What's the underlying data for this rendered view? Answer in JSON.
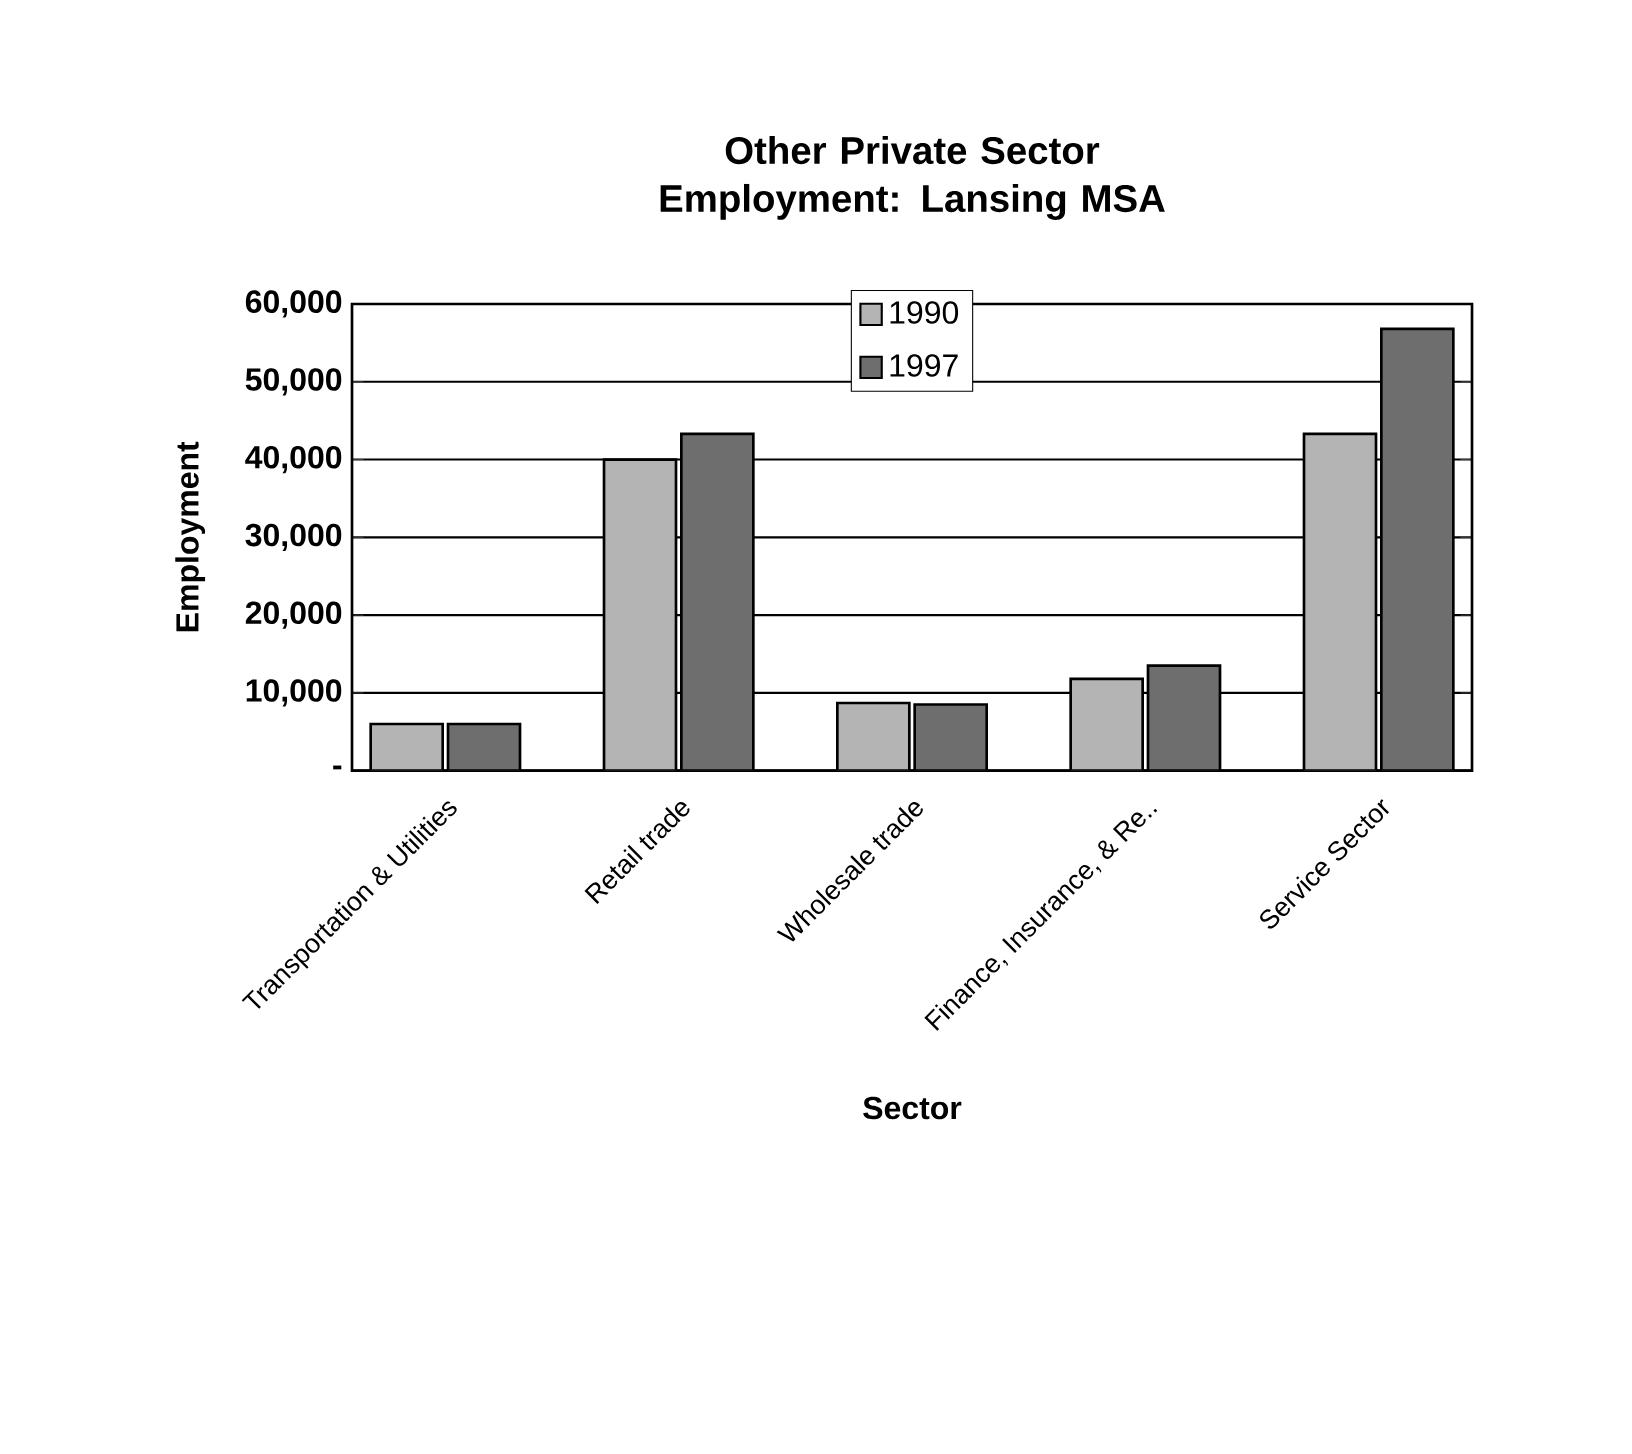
{
  "chart_data": {
    "type": "bar",
    "title": "Other Private Sector Employment: Lansing MSA",
    "xlabel": "Sector",
    "ylabel": "Employment",
    "categories": [
      "Transportation & Utilities",
      "Retail trade",
      "Wholesale trade",
      "Finance, Insurance, & Re..",
      "Service Sector"
    ],
    "series": [
      {
        "name": "1990",
        "color": "#b4b4b4",
        "values": [
          6000,
          40000,
          8700,
          11800,
          43300
        ]
      },
      {
        "name": "1997",
        "color": "#6e6e6e",
        "values": [
          6000,
          43300,
          8500,
          13500,
          56800
        ]
      }
    ],
    "ylim": [
      0,
      60000
    ],
    "yticks": [
      {
        "value": 0,
        "label": "-"
      },
      {
        "value": 10000,
        "label": "10,000"
      },
      {
        "value": 20000,
        "label": "20,000"
      },
      {
        "value": 30000,
        "label": "30,000"
      },
      {
        "value": 40000,
        "label": "40,000"
      },
      {
        "value": 50000,
        "label": "50,000"
      },
      {
        "value": 60000,
        "label": "60,000"
      }
    ],
    "grid": "y",
    "legend": "top"
  }
}
